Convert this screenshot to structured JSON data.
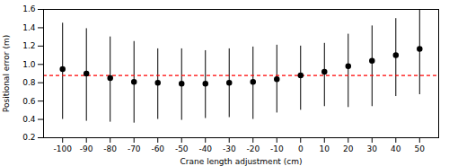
{
  "chart_data": {
    "type": "errorbar",
    "x": [
      -100,
      -90,
      -80,
      -70,
      -60,
      -50,
      -40,
      -30,
      -20,
      -10,
      0,
      10,
      20,
      30,
      40,
      50
    ],
    "values": [
      0.95,
      0.9,
      0.85,
      0.81,
      0.8,
      0.79,
      0.79,
      0.8,
      0.81,
      0.84,
      0.88,
      0.92,
      0.98,
      1.04,
      1.1,
      1.17
    ],
    "upper_err": [
      0.5,
      0.49,
      0.45,
      0.44,
      0.37,
      0.38,
      0.36,
      0.37,
      0.38,
      0.37,
      0.32,
      0.31,
      0.35,
      0.38,
      0.4,
      0.43
    ],
    "lower_err": [
      0.55,
      0.52,
      0.48,
      0.45,
      0.4,
      0.4,
      0.38,
      0.38,
      0.41,
      0.37,
      0.38,
      0.38,
      0.45,
      0.5,
      0.45,
      0.5
    ],
    "color": "black",
    "marker": "circle",
    "reference_line": {
      "y": 0.88,
      "color": "#FF0000",
      "line_style": "dashed"
    },
    "xlabel": "Crane length adjustment (cm)",
    "ylabel": "Positional error (m)",
    "xlim": [
      -108,
      58
    ],
    "xticks": [
      -100,
      -90,
      -80,
      -70,
      -60,
      -50,
      -40,
      -30,
      -20,
      -10,
      0,
      10,
      20,
      30,
      40,
      50
    ],
    "ylim": [
      0.2,
      1.6
    ],
    "yticks": [
      0.2,
      0.4,
      0.6,
      0.8,
      {
        "value": 1,
        "label": "1.0"
      },
      1.2,
      1.4,
      1.6
    ],
    "grid": false
  }
}
